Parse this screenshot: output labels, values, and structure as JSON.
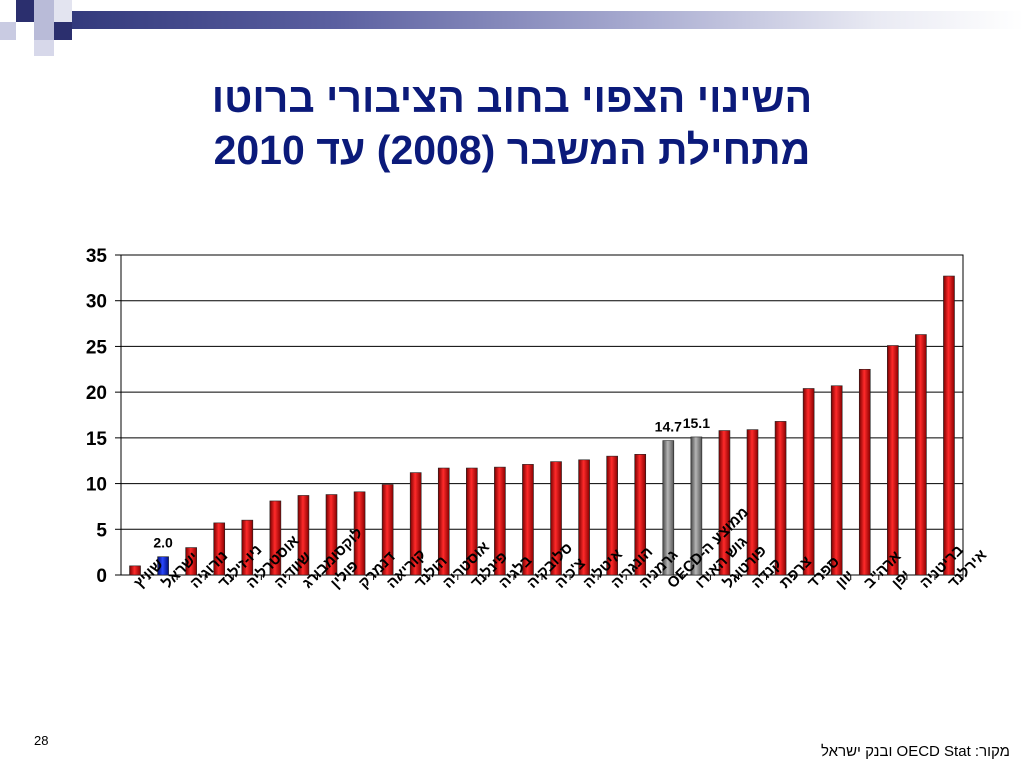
{
  "slide": {
    "title_line1": "השינוי הצפוי בחוב הציבורי ברוטו",
    "title_line2": "מתחילת המשבר (2008) עד 2010",
    "page_number": "28",
    "source": "מקור: OECD Stat ובנק ישראל",
    "accent_colors": {
      "title": "#0b1a7a",
      "band_dark": "#2e3578"
    }
  },
  "chart_data": {
    "type": "bar",
    "title": "",
    "xlabel": "",
    "ylabel": "",
    "ylim": [
      0,
      35
    ],
    "yticks": [
      0,
      5,
      10,
      15,
      20,
      25,
      30,
      35
    ],
    "grid": true,
    "categories": [
      "שוויץ",
      "ישראל",
      "נורוגיה",
      "ניו-זילנד",
      "אוסטרליה",
      "שוודיה",
      "לוקסומבורג",
      "פולין",
      "דנמרק",
      "קוריאה",
      "הולנד",
      "אוסטריה",
      "פינלנד",
      "בלגיה",
      "סלובקיה",
      "צ'כיה",
      "איטליה",
      "הונגריה",
      "גרמניה",
      "ממוצע ה-OECD",
      "גוש האירו",
      "פורטוגל",
      "קנדה",
      "צרפת",
      "ספרד",
      "יוון",
      "ארה\"ב",
      "יפן",
      "בריטניה",
      "אירלנד"
    ],
    "values": [
      1.0,
      2.0,
      3.0,
      5.7,
      6.0,
      8.1,
      8.7,
      8.8,
      9.1,
      9.9,
      11.2,
      11.7,
      11.7,
      11.8,
      12.1,
      12.4,
      12.6,
      13.0,
      13.2,
      14.7,
      15.1,
      15.8,
      15.9,
      16.8,
      20.4,
      20.7,
      22.5,
      25.1,
      26.3,
      32.7
    ],
    "bar_styles": [
      "red",
      "blue",
      "red",
      "red",
      "red",
      "red",
      "red",
      "red",
      "red",
      "red",
      "red",
      "red",
      "red",
      "red",
      "red",
      "red",
      "red",
      "red",
      "red",
      "gray",
      "gray",
      "red",
      "red",
      "red",
      "red",
      "red",
      "red",
      "red",
      "red",
      "red"
    ],
    "data_labels": [
      {
        "category": "ישראל",
        "label": "2.0"
      },
      {
        "category": "ממוצע ה-OECD",
        "label": "14.7"
      },
      {
        "category": "גוש האירו",
        "label": "15.1"
      }
    ],
    "colors": {
      "red": "#e8141b",
      "blue": "#1a2fd8",
      "gray": "#8c8c8c"
    }
  }
}
